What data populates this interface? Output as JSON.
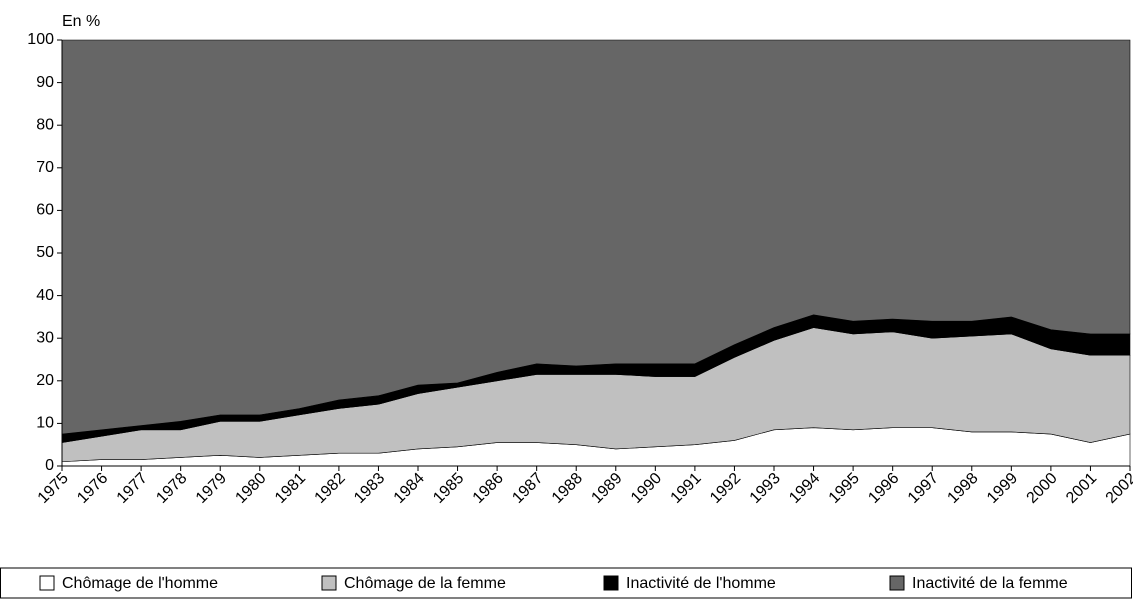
{
  "chart_data": {
    "type": "stacked-area",
    "y_label": "En %",
    "categories": [
      "1975",
      "1976",
      "1977",
      "1978",
      "1979",
      "1980",
      "1981",
      "1982",
      "1983",
      "1984",
      "1985",
      "1986",
      "1987",
      "1988",
      "1989",
      "1990",
      "1991",
      "1992",
      "1993",
      "1994",
      "1995",
      "1996",
      "1997",
      "1998",
      "1999",
      "2000",
      "2001",
      "2002"
    ],
    "series": [
      {
        "name": "Chômage de l'homme",
        "color": "#ffffff",
        "values": [
          1,
          1.5,
          1.5,
          2,
          2.5,
          2,
          2.5,
          3,
          3,
          4,
          4.5,
          5.5,
          5.5,
          5,
          4,
          4.5,
          5,
          6,
          8.5,
          9,
          8.5,
          9,
          9,
          8,
          8,
          7.5,
          5.5,
          7.5
        ]
      },
      {
        "name": "Chômage de la femme",
        "color": "#c0c0c0",
        "values": [
          4.5,
          5.5,
          7,
          6.5,
          8,
          8.5,
          9.5,
          10.5,
          11.5,
          13,
          14,
          14.5,
          16,
          16.5,
          17.5,
          16.5,
          16,
          19.5,
          21,
          23.5,
          22.5,
          22.5,
          21,
          22.5,
          23,
          20,
          20.5,
          18.5
        ]
      },
      {
        "name": "Inactivité de l'homme",
        "color": "#000000",
        "values": [
          2,
          1.5,
          1,
          2,
          1.5,
          1.5,
          1.5,
          2,
          2,
          2,
          1,
          2,
          2.5,
          2,
          2.5,
          3,
          3,
          3,
          3,
          3,
          3,
          3,
          4,
          3.5,
          4,
          4.5,
          5,
          5
        ]
      },
      {
        "name": "Inactivité de la femme",
        "color": "#666666",
        "values": [
          92.5,
          91.5,
          90.5,
          89.5,
          88,
          88,
          86.5,
          84.5,
          83.5,
          81,
          80.5,
          78,
          76,
          76.5,
          76,
          76,
          76,
          71.5,
          67.5,
          64.5,
          66,
          65.5,
          66,
          66,
          65,
          68,
          69,
          69
        ]
      }
    ],
    "ylim": [
      0,
      100
    ],
    "yticks": [
      0,
      10,
      20,
      30,
      40,
      50,
      60,
      70,
      80,
      90,
      100
    ],
    "grid": false,
    "legend": "bottom"
  }
}
